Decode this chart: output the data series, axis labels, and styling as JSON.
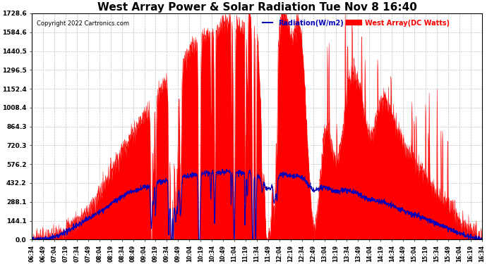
{
  "title": "West Array Power & Solar Radiation Tue Nov 8 16:40",
  "copyright": "Copyright 2022 Cartronics.com",
  "legend_radiation": "Radiation(W/m2)",
  "legend_west": "West Array(DC Watts)",
  "yticks": [
    0.0,
    144.1,
    288.1,
    432.2,
    576.2,
    720.3,
    864.3,
    1008.4,
    1152.4,
    1296.5,
    1440.5,
    1584.6,
    1728.6
  ],
  "ymax": 1728.6,
  "ymin": 0.0,
  "radiation_color": "#FF0000",
  "west_array_color": "#0000BB",
  "background_color": "#FFFFFF",
  "grid_color": "#BBBBBB",
  "title_fontsize": 11,
  "figwidth": 6.9,
  "figheight": 3.75,
  "xtick_labels": [
    "06:34",
    "06:49",
    "07:04",
    "07:19",
    "07:34",
    "07:49",
    "08:04",
    "08:19",
    "08:34",
    "08:49",
    "09:04",
    "09:19",
    "09:34",
    "09:49",
    "10:04",
    "10:19",
    "10:34",
    "10:49",
    "11:04",
    "11:19",
    "11:34",
    "11:49",
    "12:04",
    "12:19",
    "12:34",
    "12:49",
    "13:04",
    "13:19",
    "13:34",
    "13:49",
    "14:04",
    "14:19",
    "14:34",
    "14:49",
    "15:04",
    "15:19",
    "15:34",
    "15:49",
    "16:04",
    "16:19",
    "16:34"
  ],
  "rad_keypoints": [
    [
      0,
      0
    ],
    [
      1,
      10
    ],
    [
      2,
      30
    ],
    [
      3,
      80
    ],
    [
      4,
      140
    ],
    [
      5,
      220
    ],
    [
      6,
      350
    ],
    [
      7,
      520
    ],
    [
      8,
      680
    ],
    [
      9,
      820
    ],
    [
      10,
      950
    ],
    [
      11,
      1080
    ],
    [
      12,
      1200
    ],
    [
      13,
      1320
    ],
    [
      14,
      1440
    ],
    [
      15,
      1530
    ],
    [
      16,
      1590
    ],
    [
      17,
      1640
    ],
    [
      18,
      1680
    ],
    [
      19,
      1650
    ],
    [
      20,
      1620
    ],
    [
      21,
      30
    ],
    [
      22,
      1580
    ],
    [
      23,
      1560
    ],
    [
      24,
      1500
    ],
    [
      25,
      100
    ],
    [
      26,
      800
    ],
    [
      27,
      600
    ],
    [
      28,
      1100
    ],
    [
      29,
      1200
    ],
    [
      30,
      800
    ],
    [
      31,
      1050
    ],
    [
      32,
      950
    ],
    [
      33,
      750
    ],
    [
      34,
      600
    ],
    [
      35,
      500
    ],
    [
      36,
      350
    ],
    [
      37,
      280
    ],
    [
      38,
      150
    ],
    [
      39,
      80
    ],
    [
      40,
      0
    ]
  ],
  "west_keypoints": [
    [
      0,
      0
    ],
    [
      1,
      5
    ],
    [
      2,
      20
    ],
    [
      3,
      60
    ],
    [
      4,
      110
    ],
    [
      5,
      160
    ],
    [
      6,
      210
    ],
    [
      7,
      270
    ],
    [
      8,
      330
    ],
    [
      9,
      370
    ],
    [
      10,
      400
    ],
    [
      11,
      430
    ],
    [
      12,
      450
    ],
    [
      13,
      470
    ],
    [
      14,
      490
    ],
    [
      15,
      500
    ],
    [
      16,
      510
    ],
    [
      17,
      515
    ],
    [
      18,
      520
    ],
    [
      19,
      510
    ],
    [
      20,
      505
    ],
    [
      21,
      400
    ],
    [
      22,
      490
    ],
    [
      23,
      485
    ],
    [
      24,
      475
    ],
    [
      25,
      380
    ],
    [
      26,
      400
    ],
    [
      27,
      370
    ],
    [
      28,
      380
    ],
    [
      29,
      350
    ],
    [
      30,
      310
    ],
    [
      31,
      290
    ],
    [
      32,
      260
    ],
    [
      33,
      220
    ],
    [
      34,
      190
    ],
    [
      35,
      160
    ],
    [
      36,
      120
    ],
    [
      37,
      90
    ],
    [
      38,
      50
    ],
    [
      39,
      20
    ],
    [
      40,
      0
    ]
  ]
}
